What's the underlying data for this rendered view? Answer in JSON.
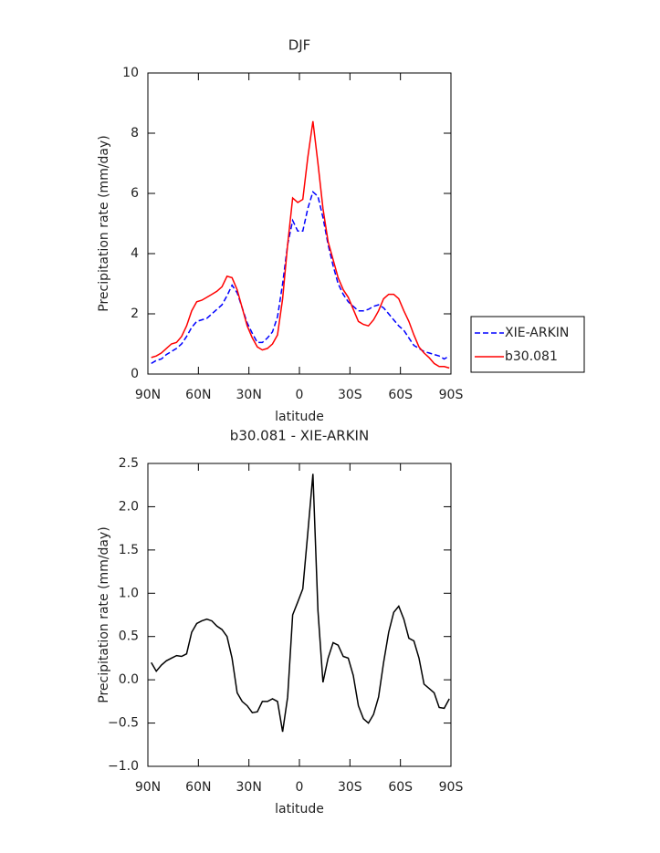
{
  "chart_data": [
    {
      "type": "line",
      "title": "DJF",
      "x_label": "latitude",
      "y_label": "Precipitation rate (mm/day)",
      "x": [
        88,
        85,
        82,
        79,
        76,
        73,
        70,
        67,
        64,
        61,
        58,
        55,
        52,
        49,
        46,
        43,
        40,
        37,
        34,
        31,
        28,
        25,
        22,
        19,
        16,
        13,
        10,
        7,
        4,
        1,
        -2,
        -5,
        -8,
        -11,
        -14,
        -17,
        -20,
        -23,
        -26,
        -29,
        -32,
        -35,
        -38,
        -41,
        -44,
        -47,
        -50,
        -53,
        -56,
        -59,
        -62,
        -65,
        -68,
        -71,
        -74,
        -77,
        -80,
        -83,
        -86,
        -89
      ],
      "series": [
        {
          "name": "XIE-ARKIN",
          "color": "#0000ff",
          "line_style": "dashed",
          "values": [
            0.35,
            0.45,
            0.5,
            0.65,
            0.75,
            0.85,
            1.0,
            1.25,
            1.55,
            1.75,
            1.8,
            1.85,
            2.0,
            2.15,
            2.3,
            2.6,
            2.95,
            2.7,
            2.2,
            1.7,
            1.35,
            1.05,
            1.05,
            1.2,
            1.4,
            1.9,
            3.0,
            4.3,
            5.1,
            4.75,
            4.75,
            5.5,
            6.05,
            5.9,
            5.2,
            4.3,
            3.6,
            3.0,
            2.65,
            2.4,
            2.25,
            2.1,
            2.1,
            2.15,
            2.25,
            2.3,
            2.2,
            2.0,
            1.8,
            1.6,
            1.45,
            1.2,
            0.95,
            0.85,
            0.75,
            0.7,
            0.65,
            0.6,
            0.5,
            0.6
          ]
        },
        {
          "name": "b30.081",
          "color": "#ff0000",
          "line_style": "solid",
          "values": [
            0.55,
            0.6,
            0.7,
            0.85,
            1.0,
            1.05,
            1.25,
            1.6,
            2.1,
            2.4,
            2.45,
            2.55,
            2.65,
            2.75,
            2.9,
            3.25,
            3.2,
            2.8,
            2.2,
            1.6,
            1.2,
            0.9,
            0.8,
            0.85,
            1.0,
            1.3,
            2.5,
            4.3,
            5.85,
            5.7,
            5.8,
            7.2,
            8.4,
            7.0,
            5.5,
            4.4,
            3.8,
            3.2,
            2.8,
            2.55,
            2.15,
            1.75,
            1.65,
            1.6,
            1.8,
            2.1,
            2.5,
            2.65,
            2.65,
            2.5,
            2.1,
            1.75,
            1.3,
            0.9,
            0.7,
            0.55,
            0.35,
            0.25,
            0.25,
            0.2
          ]
        }
      ],
      "xlim": [
        90,
        -90
      ],
      "xticks": [
        {
          "value": 90,
          "label": "90N"
        },
        {
          "value": 60,
          "label": "60N"
        },
        {
          "value": 30,
          "label": "30N"
        },
        0,
        {
          "value": -30,
          "label": "30S"
        },
        {
          "value": -60,
          "label": "60S"
        },
        {
          "value": -90,
          "label": "90S"
        }
      ],
      "ylim": [
        0,
        10
      ],
      "yticks": [
        0,
        2,
        4,
        6,
        8,
        10
      ],
      "legend": "right"
    },
    {
      "type": "line",
      "title": "b30.081 - XIE-ARKIN",
      "x_label": "latitude",
      "y_label": "Precipitation rate (mm/day)",
      "x": [
        88,
        85,
        82,
        79,
        76,
        73,
        70,
        67,
        64,
        61,
        58,
        55,
        52,
        49,
        46,
        43,
        40,
        37,
        34,
        31,
        28,
        25,
        22,
        19,
        16,
        13,
        10,
        7,
        4,
        1,
        -2,
        -5,
        -8,
        -11,
        -14,
        -17,
        -20,
        -23,
        -26,
        -29,
        -32,
        -35,
        -38,
        -41,
        -44,
        -47,
        -50,
        -53,
        -56,
        -59,
        -62,
        -65,
        -68,
        -71,
        -74,
        -77,
        -80,
        -83,
        -86,
        -89
      ],
      "series": [
        {
          "color": "#000000",
          "line_style": "solid",
          "values": [
            0.2,
            0.1,
            0.17,
            0.22,
            0.25,
            0.28,
            0.27,
            0.3,
            0.55,
            0.65,
            0.68,
            0.7,
            0.68,
            0.62,
            0.58,
            0.5,
            0.25,
            -0.15,
            -0.25,
            -0.3,
            -0.38,
            -0.37,
            -0.25,
            -0.25,
            -0.22,
            -0.25,
            -0.6,
            -0.2,
            0.75,
            0.9,
            1.05,
            1.7,
            2.38,
            0.8,
            -0.03,
            0.25,
            0.43,
            0.4,
            0.27,
            0.25,
            0.05,
            -0.3,
            -0.45,
            -0.5,
            -0.4,
            -0.2,
            0.2,
            0.55,
            0.78,
            0.85,
            0.7,
            0.48,
            0.45,
            0.25,
            -0.05,
            -0.1,
            -0.15,
            -0.32,
            -0.33,
            -0.22
          ]
        }
      ],
      "xlim": [
        90,
        -90
      ],
      "xticks": [
        {
          "value": 90,
          "label": "90N"
        },
        {
          "value": 60,
          "label": "60N"
        },
        {
          "value": 30,
          "label": "30N"
        },
        0,
        {
          "value": -30,
          "label": "30S"
        },
        {
          "value": -60,
          "label": "60S"
        },
        {
          "value": -90,
          "label": "90S"
        }
      ],
      "ylim": [
        -1.0,
        2.5
      ],
      "yticks": [
        {
          "value": -1.0,
          "label": "-1.0"
        },
        {
          "value": -0.5,
          "label": "-0.5"
        },
        {
          "value": 0.0,
          "label": "0.0"
        },
        0.5,
        {
          "value": 1.0,
          "label": "1.0"
        },
        1.5,
        {
          "value": 2.0,
          "label": "2.0"
        },
        2.5
      ]
    }
  ]
}
